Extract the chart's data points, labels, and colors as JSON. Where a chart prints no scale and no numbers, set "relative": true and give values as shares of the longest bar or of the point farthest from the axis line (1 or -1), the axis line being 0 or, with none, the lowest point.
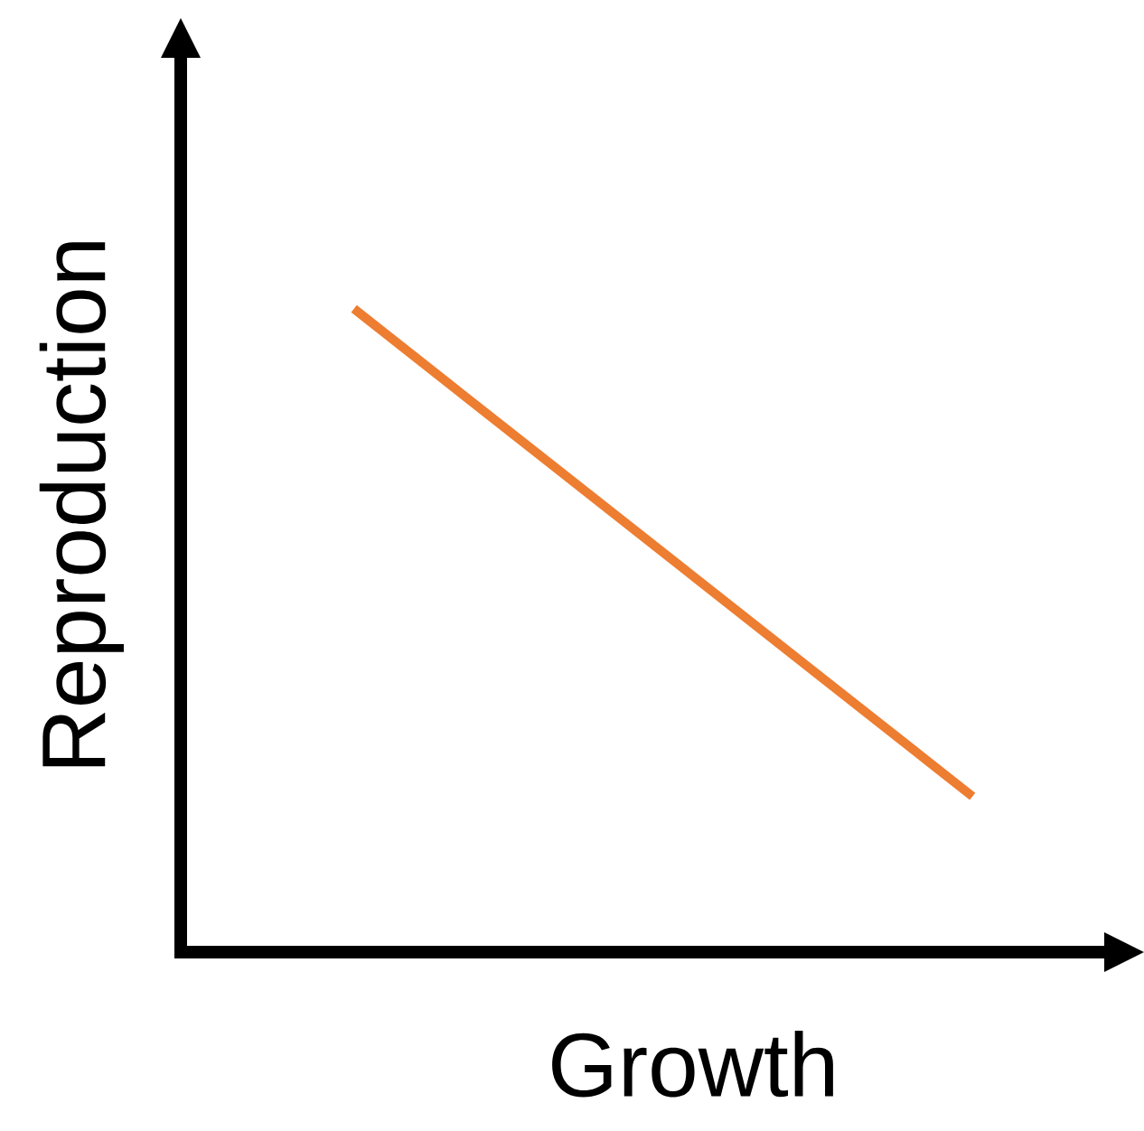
{
  "chart_data": {
    "type": "line",
    "relative": true,
    "xlabel": "Growth",
    "ylabel": "Reproduction",
    "categories": [
      null,
      null
    ],
    "series": [
      {
        "color": "#ed7d31",
        "values": [
          1,
          0.242
        ]
      }
    ]
  }
}
